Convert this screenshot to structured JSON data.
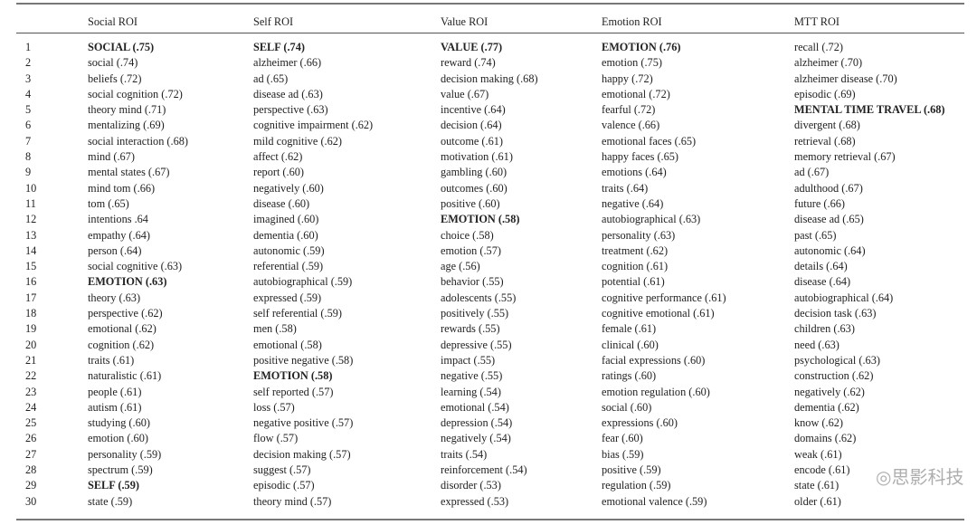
{
  "table": {
    "columns": [
      "",
      "Social ROI",
      "Self ROI",
      "Value ROI",
      "Emotion ROI",
      "MTT ROI"
    ],
    "rows": [
      [
        "1",
        "SOCIAL (.75)",
        "SELF (.74)",
        "VALUE (.77)",
        "EMOTION (.76)",
        "recall (.72)"
      ],
      [
        "2",
        "social (.74)",
        "alzheimer (.66)",
        "reward (.74)",
        "emotion (.75)",
        "alzheimer (.70)"
      ],
      [
        "3",
        "beliefs (.72)",
        "ad (.65)",
        "decision making (.68)",
        "happy (.72)",
        "alzheimer disease (.70)"
      ],
      [
        "4",
        "social cognition (.72)",
        "disease ad (.63)",
        "value (.67)",
        "emotional (.72)",
        "episodic (.69)"
      ],
      [
        "5",
        "theory mind (.71)",
        "perspective (.63)",
        "incentive (.64)",
        "fearful (.72)",
        "MENTAL TIME TRAVEL (.68)"
      ],
      [
        "6",
        "mentalizing (.69)",
        "cognitive impairment (.62)",
        "decision (.64)",
        "valence (.66)",
        "divergent (.68)"
      ],
      [
        "7",
        "social interaction (.68)",
        "mild cognitive (.62)",
        "outcome (.61)",
        "emotional faces (.65)",
        "retrieval (.68)"
      ],
      [
        "8",
        "mind (.67)",
        "affect (.62)",
        "motivation (.61)",
        "happy faces (.65)",
        "memory retrieval (.67)"
      ],
      [
        "9",
        "mental states (.67)",
        "report (.60)",
        "gambling (.60)",
        "emotions (.64)",
        "ad (.67)"
      ],
      [
        "10",
        "mind tom (.66)",
        "negatively (.60)",
        "outcomes (.60)",
        "traits (.64)",
        "adulthood (.67)"
      ],
      [
        "11",
        "tom (.65)",
        "disease (.60)",
        "positive (.60)",
        "negative (.64)",
        "future (.66)"
      ],
      [
        "12",
        "intentions .64",
        "imagined (.60)",
        "EMOTION (.58)",
        "autobiographical (.63)",
        "disease ad (.65)"
      ],
      [
        "13",
        "empathy (.64)",
        "dementia (.60)",
        "choice (.58)",
        "personality (.63)",
        "past (.65)"
      ],
      [
        "14",
        "person (.64)",
        "autonomic (.59)",
        "emotion (.57)",
        "treatment (.62)",
        "autonomic (.64)"
      ],
      [
        "15",
        "social cognitive (.63)",
        "referential (.59)",
        "age (.56)",
        "cognition (.61)",
        "details (.64)"
      ],
      [
        "16",
        "EMOTION (.63)",
        "autobiographical (.59)",
        "behavior (.55)",
        "potential (.61)",
        "disease (.64)"
      ],
      [
        "17",
        "theory (.63)",
        "expressed (.59)",
        "adolescents (.55)",
        "cognitive performance (.61)",
        "autobiographical (.64)"
      ],
      [
        "18",
        "perspective (.62)",
        "self referential (.59)",
        "positively (.55)",
        "cognitive emotional (.61)",
        "decision task (.63)"
      ],
      [
        "19",
        "emotional (.62)",
        "men (.58)",
        "rewards (.55)",
        "female (.61)",
        "children (.63)"
      ],
      [
        "20",
        "cognition (.62)",
        "emotional (.58)",
        "depressive (.55)",
        "clinical (.60)",
        "need (.63)"
      ],
      [
        "21",
        "traits (.61)",
        "positive negative (.58)",
        "impact (.55)",
        "facial expressions (.60)",
        "psychological (.63)"
      ],
      [
        "22",
        "naturalistic (.61)",
        "EMOTION (.58)",
        "negative (.55)",
        "ratings (.60)",
        "construction (.62)"
      ],
      [
        "23",
        "people (.61)",
        "self reported (.57)",
        "learning (.54)",
        "emotion regulation (.60)",
        "negatively (.62)"
      ],
      [
        "24",
        "autism (.61)",
        "loss (.57)",
        "emotional (.54)",
        "social (.60)",
        "dementia (.62)"
      ],
      [
        "25",
        "studying (.60)",
        "negative positive (.57)",
        "depression (.54)",
        "expressions (.60)",
        "know (.62)"
      ],
      [
        "26",
        "emotion (.60)",
        "flow (.57)",
        "negatively (.54)",
        "fear (.60)",
        "domains (.62)"
      ],
      [
        "27",
        "personality (.59)",
        "decision making (.57)",
        "traits (.54)",
        "bias (.59)",
        "weak (.61)"
      ],
      [
        "28",
        "spectrum (.59)",
        "suggest (.57)",
        "reinforcement (.54)",
        "positive (.59)",
        "encode (.61)"
      ],
      [
        "29",
        "SELF (.59)",
        "episodic (.57)",
        "disorder (.53)",
        "regulation (.59)",
        "state (.61)"
      ],
      [
        "30",
        "state (.59)",
        "theory mind (.57)",
        "expressed (.53)",
        "emotional valence (.59)",
        "older (.61)"
      ]
    ],
    "bold_cells": [
      [
        0,
        1
      ],
      [
        0,
        2
      ],
      [
        0,
        3
      ],
      [
        0,
        4
      ],
      [
        4,
        5
      ],
      [
        11,
        3
      ],
      [
        15,
        1
      ],
      [
        21,
        2
      ],
      [
        28,
        1
      ]
    ]
  },
  "watermark": "思影科技"
}
